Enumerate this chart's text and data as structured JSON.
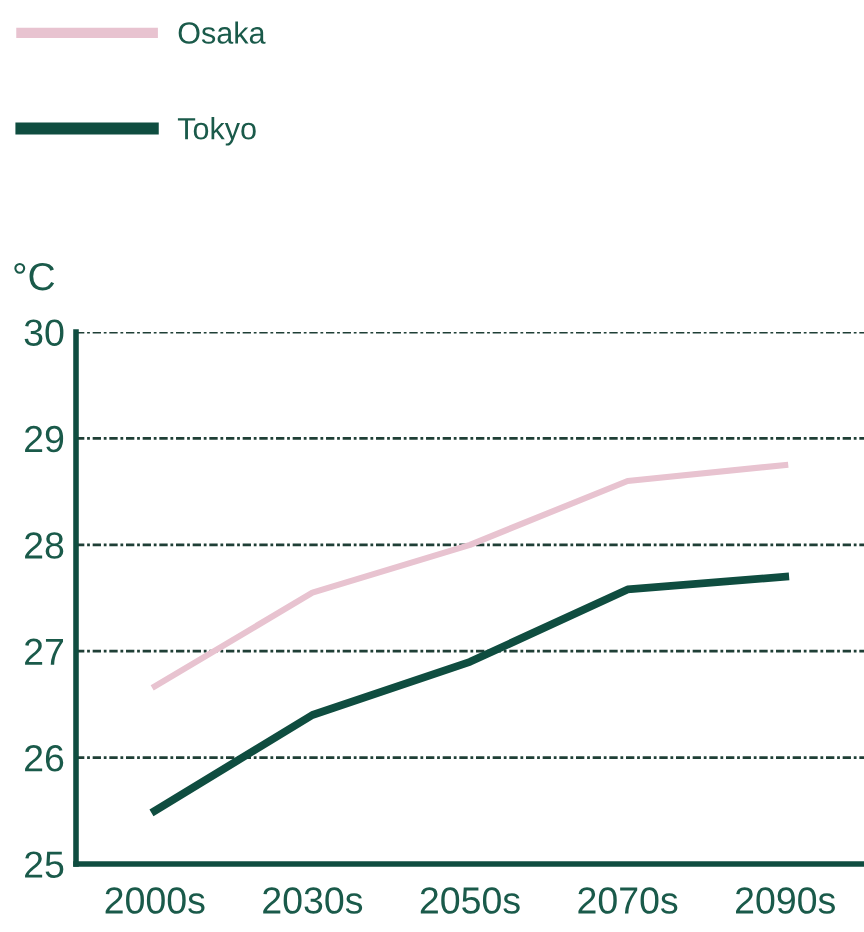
{
  "chart_data": {
    "type": "line",
    "ylabel": "°C",
    "categories": [
      "2000s",
      "2030s",
      "2050s",
      "2070s",
      "2090s"
    ],
    "series": [
      {
        "name": "Osaka",
        "color": "#e8c3d0",
        "values": [
          26.67,
          27.55,
          28.0,
          28.6,
          28.75
        ]
      },
      {
        "name": "Tokyo",
        "color": "#0f4d40",
        "values": [
          25.5,
          26.4,
          26.9,
          27.58,
          27.7
        ]
      }
    ],
    "ylim": [
      25,
      30
    ],
    "yticks": [
      25,
      26,
      27,
      28,
      29,
      30
    ],
    "grid": "y",
    "legend": "top left",
    "marker": "none",
    "line_style": "solid"
  }
}
